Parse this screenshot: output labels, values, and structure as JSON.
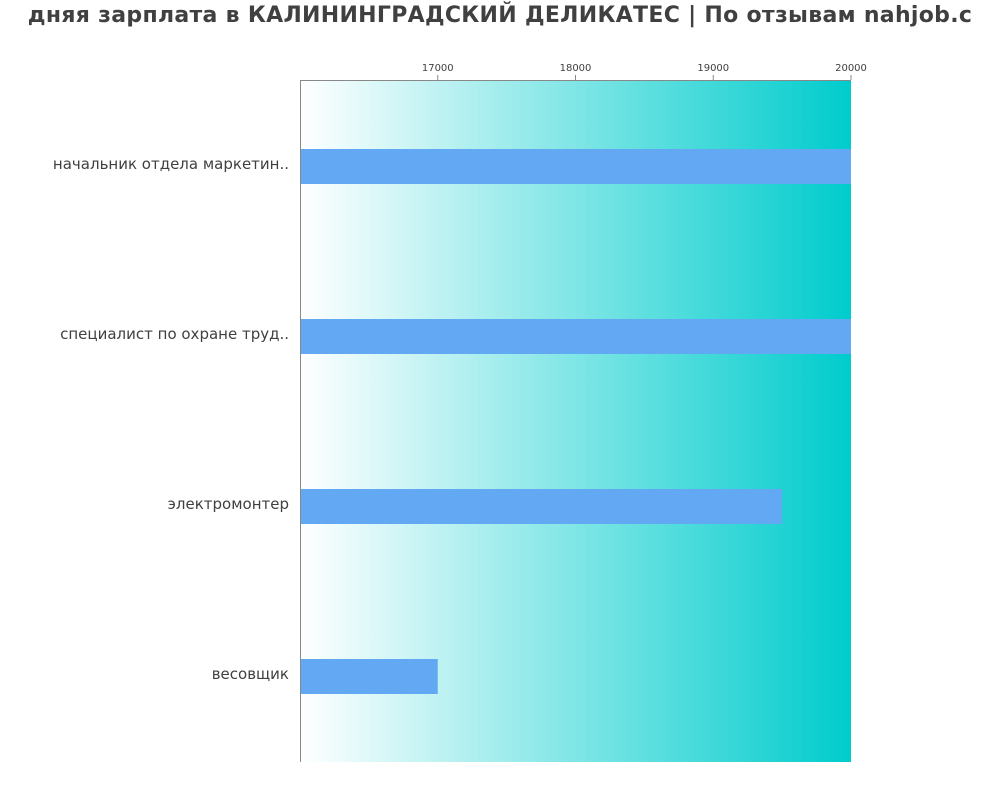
{
  "chart_data": {
    "type": "bar",
    "orientation": "horizontal",
    "title": "дняя зарплата в КАЛИНИНГРАДСКИЙ ДЕЛИКАТЕС | По отзывам nahjob.c",
    "xlabel": "",
    "ylabel": "",
    "categories": [
      "начальник отдела маркетин..",
      "специалист по охране труд..",
      "электромонтер",
      "весовщик"
    ],
    "values": [
      20000,
      20000,
      19500,
      17000
    ],
    "xticks": [
      17000,
      18000,
      19000,
      20000
    ],
    "xlim": [
      16000,
      20000
    ],
    "x_axis_position": "top",
    "grid": false,
    "legend": "none",
    "colors": {
      "bar": "#63a8f2",
      "background_start": "#ffffff",
      "background_end": "#00cccc",
      "axis": "#888888",
      "text": "#404040"
    }
  }
}
